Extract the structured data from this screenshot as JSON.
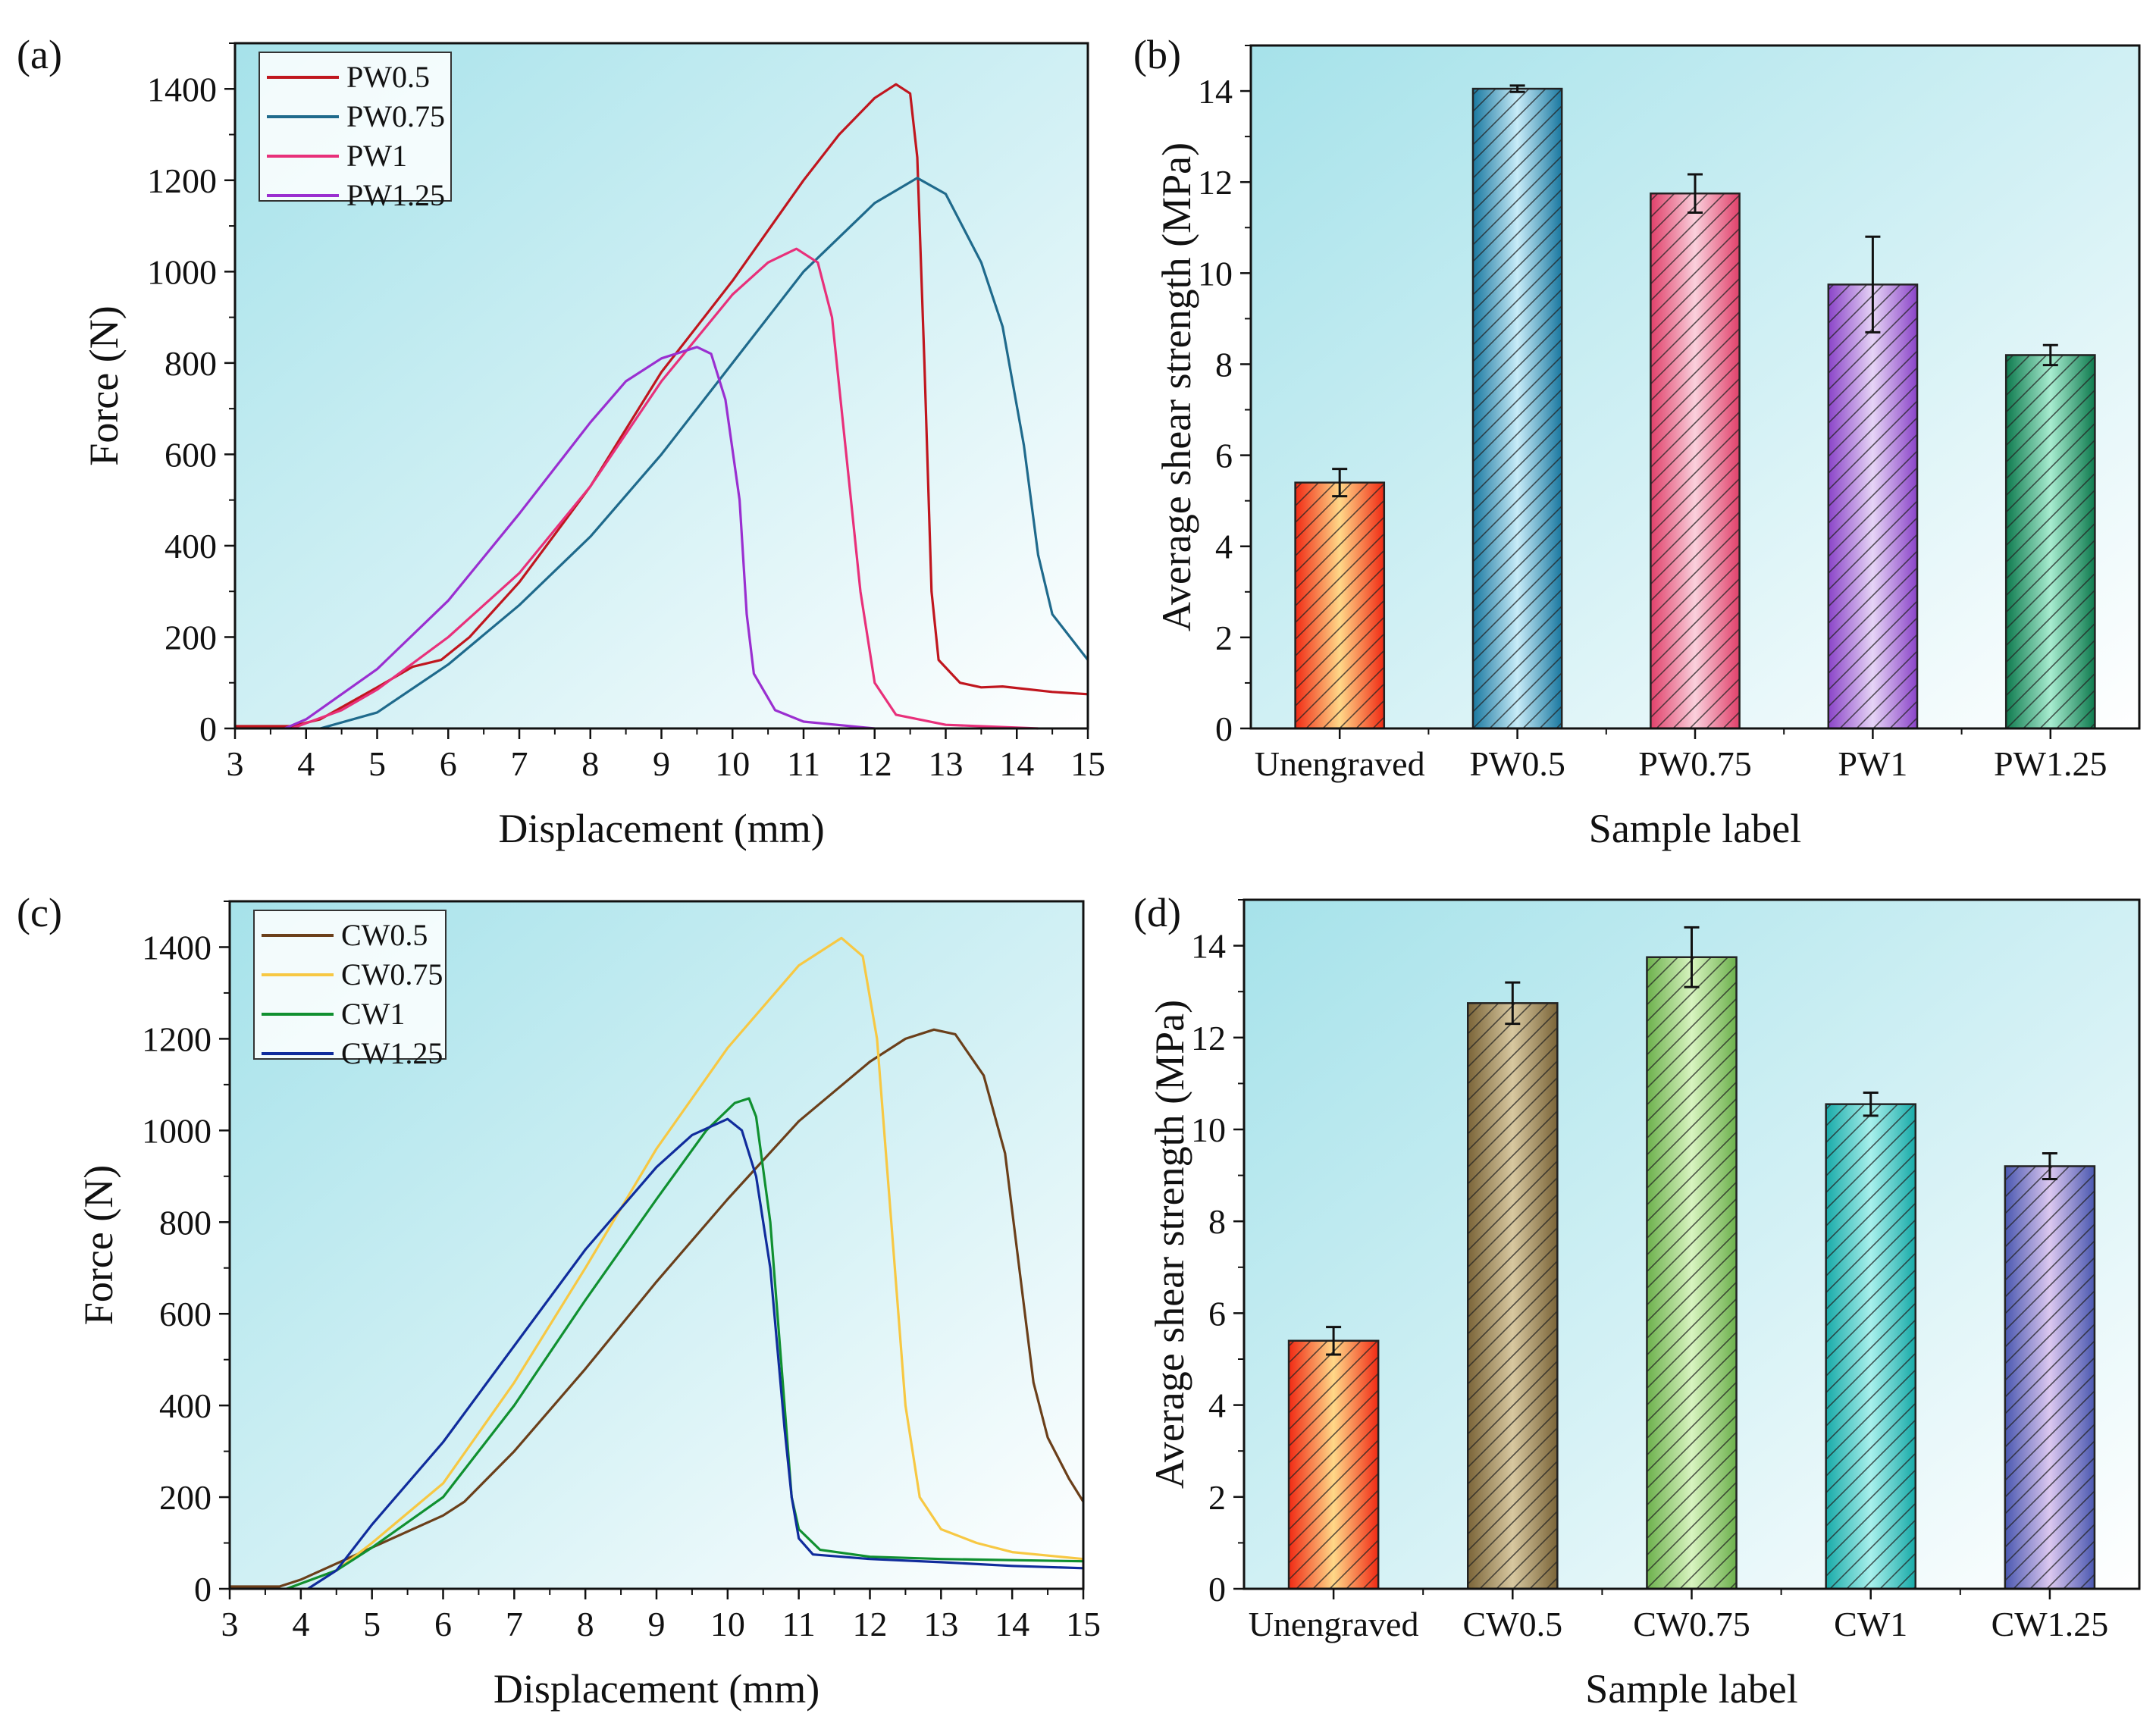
{
  "chart_data": [
    {
      "panel": "(a)",
      "type": "line",
      "xlabel": "Displacement (mm)",
      "ylabel": "Force (N)",
      "xlim": [
        3,
        15
      ],
      "ylim": [
        0,
        1500
      ],
      "xticks": [
        3,
        4,
        5,
        6,
        7,
        8,
        9,
        10,
        11,
        12,
        13,
        14,
        15
      ],
      "yticks": [
        0,
        200,
        400,
        600,
        800,
        1000,
        1200,
        1400
      ],
      "legend_position": "top-left",
      "grid": false,
      "series": [
        {
          "name": "PW0.5",
          "color": "#c0161e",
          "points": [
            [
              3,
              5
            ],
            [
              3.8,
              5
            ],
            [
              4.2,
              20
            ],
            [
              5,
              90
            ],
            [
              5.5,
              135
            ],
            [
              5.9,
              150
            ],
            [
              6.3,
              200
            ],
            [
              7,
              320
            ],
            [
              8,
              530
            ],
            [
              9,
              780
            ],
            [
              9.5,
              880
            ],
            [
              10,
              980
            ],
            [
              11,
              1200
            ],
            [
              11.5,
              1300
            ],
            [
              12,
              1380
            ],
            [
              12.3,
              1410
            ],
            [
              12.5,
              1390
            ],
            [
              12.6,
              1250
            ],
            [
              12.7,
              800
            ],
            [
              12.8,
              300
            ],
            [
              12.9,
              150
            ],
            [
              13.2,
              100
            ],
            [
              13.5,
              90
            ],
            [
              13.8,
              92
            ],
            [
              14.5,
              80
            ],
            [
              15,
              75
            ]
          ]
        },
        {
          "name": "PW0.75",
          "color": "#1f6a8c",
          "points": [
            [
              4.2,
              0
            ],
            [
              5,
              35
            ],
            [
              6,
              140
            ],
            [
              7,
              270
            ],
            [
              8,
              420
            ],
            [
              9,
              600
            ],
            [
              10,
              800
            ],
            [
              11,
              1000
            ],
            [
              12,
              1150
            ],
            [
              12.6,
              1205
            ],
            [
              13,
              1170
            ],
            [
              13.5,
              1020
            ],
            [
              13.8,
              880
            ],
            [
              14.1,
              620
            ],
            [
              14.3,
              380
            ],
            [
              14.5,
              250
            ],
            [
              15,
              150
            ]
          ]
        },
        {
          "name": "PW1",
          "color": "#e8307a",
          "points": [
            [
              3.8,
              0
            ],
            [
              4.5,
              40
            ],
            [
              5,
              85
            ],
            [
              6,
              200
            ],
            [
              7,
              340
            ],
            [
              8,
              530
            ],
            [
              9,
              760
            ],
            [
              10,
              950
            ],
            [
              10.5,
              1020
            ],
            [
              10.9,
              1050
            ],
            [
              11.2,
              1020
            ],
            [
              11.4,
              900
            ],
            [
              11.6,
              600
            ],
            [
              11.8,
              300
            ],
            [
              12,
              100
            ],
            [
              12.3,
              30
            ],
            [
              13,
              8
            ],
            [
              14.3,
              0
            ]
          ]
        },
        {
          "name": "PW1.25",
          "color": "#9a2fd0",
          "points": [
            [
              3.7,
              0
            ],
            [
              4,
              20
            ],
            [
              5,
              130
            ],
            [
              6,
              280
            ],
            [
              7,
              470
            ],
            [
              8,
              670
            ],
            [
              8.5,
              760
            ],
            [
              9,
              810
            ],
            [
              9.5,
              835
            ],
            [
              9.7,
              820
            ],
            [
              9.9,
              720
            ],
            [
              10.1,
              500
            ],
            [
              10.2,
              250
            ],
            [
              10.3,
              120
            ],
            [
              10.6,
              40
            ],
            [
              11,
              15
            ],
            [
              12,
              0
            ]
          ]
        }
      ]
    },
    {
      "panel": "(b)",
      "type": "bar",
      "xlabel": "Sample label",
      "ylabel": "Average shear strength (MPa)",
      "ylim": [
        0,
        15
      ],
      "yticks": [
        0,
        2,
        4,
        6,
        8,
        10,
        12,
        14
      ],
      "categories": [
        "Unengraved",
        "PW0.5",
        "PW0.75",
        "PW1",
        "PW1.25"
      ],
      "values": [
        5.4,
        14.05,
        11.75,
        9.75,
        8.2
      ],
      "errors": [
        0.3,
        0.07,
        0.42,
        1.05,
        0.22
      ],
      "colors": [
        "#f02a14",
        "#1a78a0",
        "#e0406a",
        "#8a44c8",
        "#0e7a4e"
      ],
      "highlights": [
        "#ffd888",
        "#c8ecf8",
        "#fad0dc",
        "#e6d4f6",
        "#a8ecd0"
      ]
    },
    {
      "panel": "(c)",
      "type": "line",
      "xlabel": "Displacement (mm)",
      "ylabel": "Force (N)",
      "xlim": [
        3,
        15
      ],
      "ylim": [
        0,
        1500
      ],
      "xticks": [
        3,
        4,
        5,
        6,
        7,
        8,
        9,
        10,
        11,
        12,
        13,
        14,
        15
      ],
      "yticks": [
        0,
        200,
        400,
        600,
        800,
        1000,
        1200,
        1400
      ],
      "legend_position": "top-left",
      "grid": false,
      "series": [
        {
          "name": "CW0.5",
          "color": "#6b3f1a",
          "points": [
            [
              3,
              5
            ],
            [
              3.7,
              5
            ],
            [
              4,
              20
            ],
            [
              5,
              90
            ],
            [
              6,
              160
            ],
            [
              6.3,
              190
            ],
            [
              7,
              300
            ],
            [
              8,
              480
            ],
            [
              9,
              670
            ],
            [
              10,
              850
            ],
            [
              11,
              1020
            ],
            [
              12,
              1150
            ],
            [
              12.5,
              1200
            ],
            [
              12.9,
              1220
            ],
            [
              13.2,
              1210
            ],
            [
              13.6,
              1120
            ],
            [
              13.9,
              950
            ],
            [
              14.1,
              700
            ],
            [
              14.3,
              450
            ],
            [
              14.5,
              330
            ],
            [
              14.8,
              240
            ],
            [
              15,
              190
            ]
          ]
        },
        {
          "name": "CW0.75",
          "color": "#f7c843",
          "points": [
            [
              3.8,
              0
            ],
            [
              4.5,
              40
            ],
            [
              5,
              100
            ],
            [
              6,
              230
            ],
            [
              7,
              450
            ],
            [
              8,
              700
            ],
            [
              9,
              960
            ],
            [
              10,
              1180
            ],
            [
              11,
              1360
            ],
            [
              11.6,
              1420
            ],
            [
              11.9,
              1380
            ],
            [
              12.1,
              1200
            ],
            [
              12.3,
              800
            ],
            [
              12.5,
              400
            ],
            [
              12.7,
              200
            ],
            [
              13,
              130
            ],
            [
              13.5,
              100
            ],
            [
              14,
              80
            ],
            [
              15,
              65
            ]
          ]
        },
        {
          "name": "CW1",
          "color": "#109030",
          "points": [
            [
              3.8,
              0
            ],
            [
              4.5,
              40
            ],
            [
              5,
              90
            ],
            [
              6,
              200
            ],
            [
              7,
              400
            ],
            [
              8,
              630
            ],
            [
              9,
              850
            ],
            [
              9.7,
              1000
            ],
            [
              10.1,
              1060
            ],
            [
              10.3,
              1070
            ],
            [
              10.4,
              1030
            ],
            [
              10.6,
              800
            ],
            [
              10.8,
              400
            ],
            [
              10.9,
              200
            ],
            [
              11,
              130
            ],
            [
              11.3,
              85
            ],
            [
              12,
              70
            ],
            [
              13,
              65
            ],
            [
              15,
              60
            ]
          ]
        },
        {
          "name": "CW1.25",
          "color": "#102c9c",
          "points": [
            [
              4.1,
              0
            ],
            [
              4.5,
              40
            ],
            [
              5,
              140
            ],
            [
              6,
              320
            ],
            [
              7,
              530
            ],
            [
              8,
              740
            ],
            [
              9,
              920
            ],
            [
              9.5,
              990
            ],
            [
              10,
              1025
            ],
            [
              10.2,
              1000
            ],
            [
              10.4,
              900
            ],
            [
              10.6,
              700
            ],
            [
              10.8,
              350
            ],
            [
              10.9,
              200
            ],
            [
              11,
              110
            ],
            [
              11.2,
              75
            ],
            [
              12,
              65
            ],
            [
              13,
              58
            ],
            [
              14,
              50
            ],
            [
              15,
              45
            ]
          ]
        }
      ]
    },
    {
      "panel": "(d)",
      "type": "bar",
      "xlabel": "Sample label",
      "ylabel": "Average shear strength (MPa)",
      "ylim": [
        0,
        15
      ],
      "yticks": [
        0,
        2,
        4,
        6,
        8,
        10,
        12,
        14
      ],
      "categories": [
        "Unengraved",
        "CW0.5",
        "CW0.75",
        "CW1",
        "CW1.25"
      ],
      "values": [
        5.4,
        12.75,
        13.75,
        10.55,
        9.2
      ],
      "errors": [
        0.3,
        0.45,
        0.65,
        0.25,
        0.28
      ],
      "colors": [
        "#f02a14",
        "#7a6438",
        "#6cb04c",
        "#18aaa8",
        "#4a58b0"
      ],
      "highlights": [
        "#ffd888",
        "#d8c8a0",
        "#d8f4c0",
        "#a8f0ec",
        "#dcc8f0"
      ]
    }
  ]
}
